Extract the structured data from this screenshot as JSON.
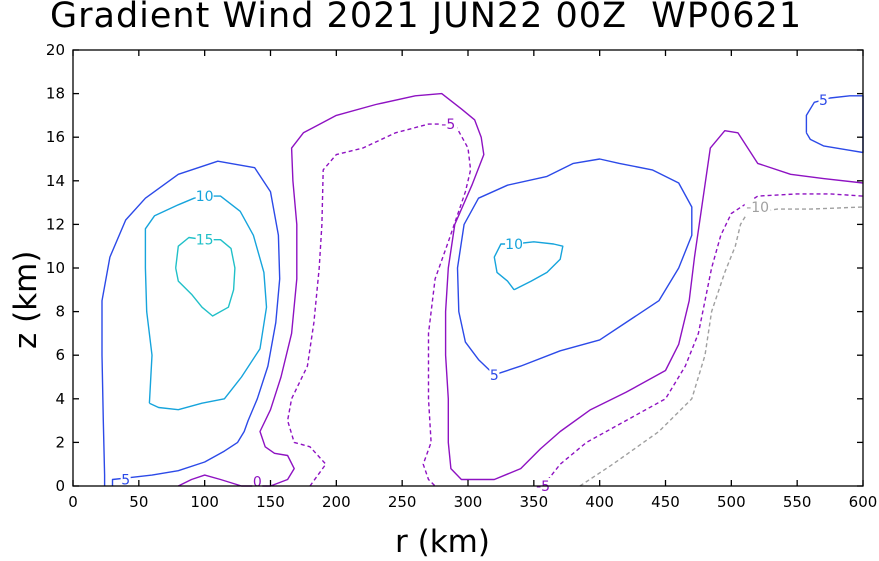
{
  "chart_data": {
    "type": "contour",
    "title": "Gradient Wind 2021 JUN22 00Z  WP0621",
    "xlabel": "r (km)",
    "ylabel": "z (km)",
    "xlim": [
      0,
      600
    ],
    "ylim": [
      0,
      20
    ],
    "xticks": [
      0,
      50,
      100,
      150,
      200,
      250,
      300,
      350,
      400,
      450,
      500,
      550,
      600
    ],
    "yticks": [
      0,
      2,
      4,
      6,
      8,
      10,
      12,
      14,
      16,
      18,
      20
    ],
    "grid": false,
    "contours": [
      {
        "level": 15,
        "label": "15",
        "color": "#20c0c8",
        "dashed": false,
        "label_pos": [
          100,
          11.3
        ],
        "points": [
          [
            78,
            10.0
          ],
          [
            80,
            11.0
          ],
          [
            88,
            11.4
          ],
          [
            100,
            11.3
          ],
          [
            112,
            11.3
          ],
          [
            120,
            10.9
          ],
          [
            123,
            10.0
          ],
          [
            122,
            9.0
          ],
          [
            118,
            8.2
          ],
          [
            106,
            7.8
          ],
          [
            98,
            8.2
          ],
          [
            90,
            8.8
          ],
          [
            80,
            9.4
          ],
          [
            78,
            10.0
          ]
        ]
      },
      {
        "level": 10,
        "label": "10",
        "color": "#16a4dc",
        "dashed": false,
        "label_pos": [
          100,
          13.3
        ],
        "points": [
          [
            58,
            3.8
          ],
          [
            60,
            6.0
          ],
          [
            56,
            8.0
          ],
          [
            55,
            10.0
          ],
          [
            55,
            11.8
          ],
          [
            62,
            12.4
          ],
          [
            80,
            12.9
          ],
          [
            92,
            13.2
          ],
          [
            100,
            13.3
          ],
          [
            112,
            13.3
          ],
          [
            127,
            12.6
          ],
          [
            137,
            11.5
          ],
          [
            145,
            9.8
          ],
          [
            147,
            8.2
          ],
          [
            142,
            6.3
          ],
          [
            128,
            5.0
          ],
          [
            115,
            4.0
          ],
          [
            98,
            3.8
          ],
          [
            80,
            3.5
          ],
          [
            65,
            3.6
          ],
          [
            58,
            3.8
          ]
        ]
      },
      {
        "level": 10,
        "label": "10",
        "color": "#16a4dc",
        "dashed": false,
        "label_pos": [
          335,
          11.1
        ],
        "points": [
          [
            335,
            9.0
          ],
          [
            330,
            9.4
          ],
          [
            322,
            9.8
          ],
          [
            320,
            10.5
          ],
          [
            325,
            11.1
          ],
          [
            335,
            11.1
          ],
          [
            350,
            11.2
          ],
          [
            365,
            11.1
          ],
          [
            372,
            11.0
          ],
          [
            370,
            10.4
          ],
          [
            360,
            9.8
          ],
          [
            348,
            9.4
          ],
          [
            335,
            9.0
          ]
        ]
      },
      {
        "level": 5,
        "label": "5",
        "color": "#2c4ae8",
        "dashed": false,
        "label_pos": [
          40,
          0.3
        ],
        "points": [
          [
            30,
            0.0
          ],
          [
            30,
            0.3
          ],
          [
            45,
            0.4
          ],
          [
            60,
            0.5
          ],
          [
            80,
            0.7
          ],
          [
            100,
            1.1
          ],
          [
            115,
            1.6
          ],
          [
            125,
            2.0
          ],
          [
            130,
            2.5
          ],
          [
            133,
            3.0
          ],
          [
            140,
            4.0
          ],
          [
            148,
            5.5
          ],
          [
            154,
            7.5
          ],
          [
            157,
            9.5
          ],
          [
            156,
            11.5
          ],
          [
            150,
            13.5
          ],
          [
            138,
            14.6
          ],
          [
            110,
            14.9
          ],
          [
            80,
            14.3
          ],
          [
            55,
            13.2
          ],
          [
            40,
            12.2
          ],
          [
            28,
            10.5
          ],
          [
            22,
            8.5
          ],
          [
            22,
            6.0
          ],
          [
            23,
            3.0
          ],
          [
            24,
            0.5
          ],
          [
            24,
            0.0
          ]
        ]
      },
      {
        "level": 5,
        "label": "5",
        "color": "#2c4ae8",
        "dashed": false,
        "label_pos": [
          320,
          5.1
        ],
        "points": [
          [
            320,
            5.1
          ],
          [
            340,
            5.5
          ],
          [
            370,
            6.2
          ],
          [
            400,
            6.7
          ],
          [
            420,
            7.5
          ],
          [
            445,
            8.5
          ],
          [
            460,
            10.0
          ],
          [
            470,
            11.5
          ],
          [
            470,
            12.8
          ],
          [
            460,
            13.9
          ],
          [
            440,
            14.5
          ],
          [
            415,
            14.8
          ],
          [
            400,
            15.0
          ],
          [
            380,
            14.8
          ],
          [
            360,
            14.2
          ],
          [
            330,
            13.8
          ],
          [
            308,
            13.2
          ],
          [
            297,
            12.0
          ],
          [
            292,
            10.0
          ],
          [
            293,
            8.0
          ],
          [
            298,
            6.6
          ],
          [
            308,
            5.8
          ],
          [
            320,
            5.1
          ]
        ]
      },
      {
        "level": 5,
        "label": "5",
        "color": "#2c4ae8",
        "dashed": false,
        "label_pos": [
          570,
          17.7
        ],
        "points": [
          [
            557,
            16.2
          ],
          [
            557,
            17.0
          ],
          [
            563,
            17.6
          ],
          [
            575,
            17.8
          ],
          [
            590,
            17.9
          ],
          [
            600,
            17.9
          ],
          [
            600,
            15.3
          ],
          [
            590,
            15.4
          ],
          [
            570,
            15.6
          ],
          [
            560,
            15.9
          ],
          [
            557,
            16.2
          ]
        ]
      },
      {
        "level": 0,
        "label": "0",
        "color": "#8e12c2",
        "dashed": false,
        "label_pos": [
          140,
          0.2
        ],
        "points": [
          [
            80,
            0.0
          ],
          [
            90,
            0.3
          ],
          [
            100,
            0.5
          ],
          [
            112,
            0.3
          ],
          [
            128,
            0.0
          ],
          [
            150,
            0.0
          ],
          [
            163,
            0.3
          ],
          [
            168,
            0.8
          ],
          [
            163,
            1.4
          ],
          [
            153,
            1.5
          ],
          [
            146,
            1.8
          ],
          [
            142,
            2.5
          ],
          [
            150,
            3.5
          ],
          [
            158,
            5.0
          ],
          [
            166,
            7.0
          ],
          [
            170,
            9.5
          ],
          [
            170,
            12.0
          ],
          [
            167,
            14.0
          ],
          [
            166,
            15.5
          ],
          [
            175,
            16.2
          ],
          [
            200,
            17.0
          ],
          [
            230,
            17.5
          ],
          [
            260,
            17.9
          ],
          [
            280,
            18.0
          ],
          [
            295,
            17.3
          ],
          [
            305,
            16.8
          ],
          [
            310,
            16.0
          ],
          [
            312,
            15.2
          ],
          [
            303,
            13.8
          ],
          [
            290,
            12.0
          ],
          [
            285,
            10.0
          ],
          [
            283,
            8.0
          ],
          [
            283,
            6.0
          ],
          [
            285,
            4.0
          ],
          [
            285,
            2.0
          ],
          [
            287,
            0.8
          ],
          [
            295,
            0.3
          ],
          [
            320,
            0.3
          ],
          [
            340,
            0.8
          ],
          [
            355,
            1.7
          ],
          [
            370,
            2.5
          ],
          [
            393,
            3.5
          ],
          [
            420,
            4.3
          ],
          [
            450,
            5.3
          ],
          [
            460,
            6.5
          ],
          [
            468,
            8.5
          ],
          [
            472,
            10.5
          ],
          [
            478,
            13.0
          ],
          [
            484,
            15.5
          ],
          [
            495,
            16.3
          ],
          [
            505,
            16.2
          ],
          [
            520,
            14.8
          ],
          [
            545,
            14.3
          ],
          [
            570,
            14.1
          ],
          [
            600,
            13.9
          ]
        ]
      },
      {
        "level": -5,
        "label": "-5",
        "color": "#8e12c2",
        "dashed": true,
        "label_pos": [
          285,
          16.6
        ],
        "points": [
          [
            180,
            0.0
          ],
          [
            192,
            1.0
          ],
          [
            180,
            1.8
          ],
          [
            168,
            2.0
          ],
          [
            163,
            3.0
          ],
          [
            166,
            4.0
          ],
          [
            178,
            5.5
          ],
          [
            183,
            7.5
          ],
          [
            187,
            10.0
          ],
          [
            189,
            12.0
          ],
          [
            190,
            14.5
          ],
          [
            200,
            15.2
          ],
          [
            220,
            15.5
          ],
          [
            245,
            16.2
          ],
          [
            270,
            16.6
          ],
          [
            290,
            16.6
          ],
          [
            300,
            15.5
          ],
          [
            302,
            14.5
          ],
          [
            298,
            13.5
          ],
          [
            285,
            11.2
          ],
          [
            275,
            9.5
          ],
          [
            270,
            7.0
          ],
          [
            270,
            4.0
          ],
          [
            272,
            2.0
          ],
          [
            266,
            1.0
          ],
          [
            270,
            0.3
          ],
          [
            275,
            0.0
          ]
        ]
      },
      {
        "level": -5,
        "label": "-5",
        "color": "#8e12c2",
        "dashed": true,
        "label_pos": [
          357,
          0.0
        ],
        "points": [
          [
            357,
            0.0
          ],
          [
            370,
            1.0
          ],
          [
            390,
            2.0
          ],
          [
            420,
            3.0
          ],
          [
            450,
            4.0
          ],
          [
            465,
            5.5
          ],
          [
            475,
            7.0
          ],
          [
            485,
            10.0
          ],
          [
            492,
            11.5
          ],
          [
            500,
            12.5
          ],
          [
            520,
            13.3
          ],
          [
            550,
            13.4
          ],
          [
            575,
            13.4
          ],
          [
            600,
            13.3
          ]
        ]
      },
      {
        "level": -10,
        "label": "-10",
        "color": "#a0a0a0",
        "dashed": true,
        "label_pos": [
          520,
          12.8
        ],
        "points": [
          [
            385,
            0.0
          ],
          [
            410,
            1.0
          ],
          [
            445,
            2.5
          ],
          [
            470,
            4.0
          ],
          [
            480,
            6.0
          ],
          [
            485,
            8.0
          ],
          [
            495,
            9.8
          ],
          [
            503,
            11.0
          ],
          [
            507,
            12.0
          ],
          [
            512,
            12.5
          ],
          [
            535,
            12.7
          ],
          [
            560,
            12.7
          ],
          [
            600,
            12.8
          ]
        ]
      }
    ]
  }
}
